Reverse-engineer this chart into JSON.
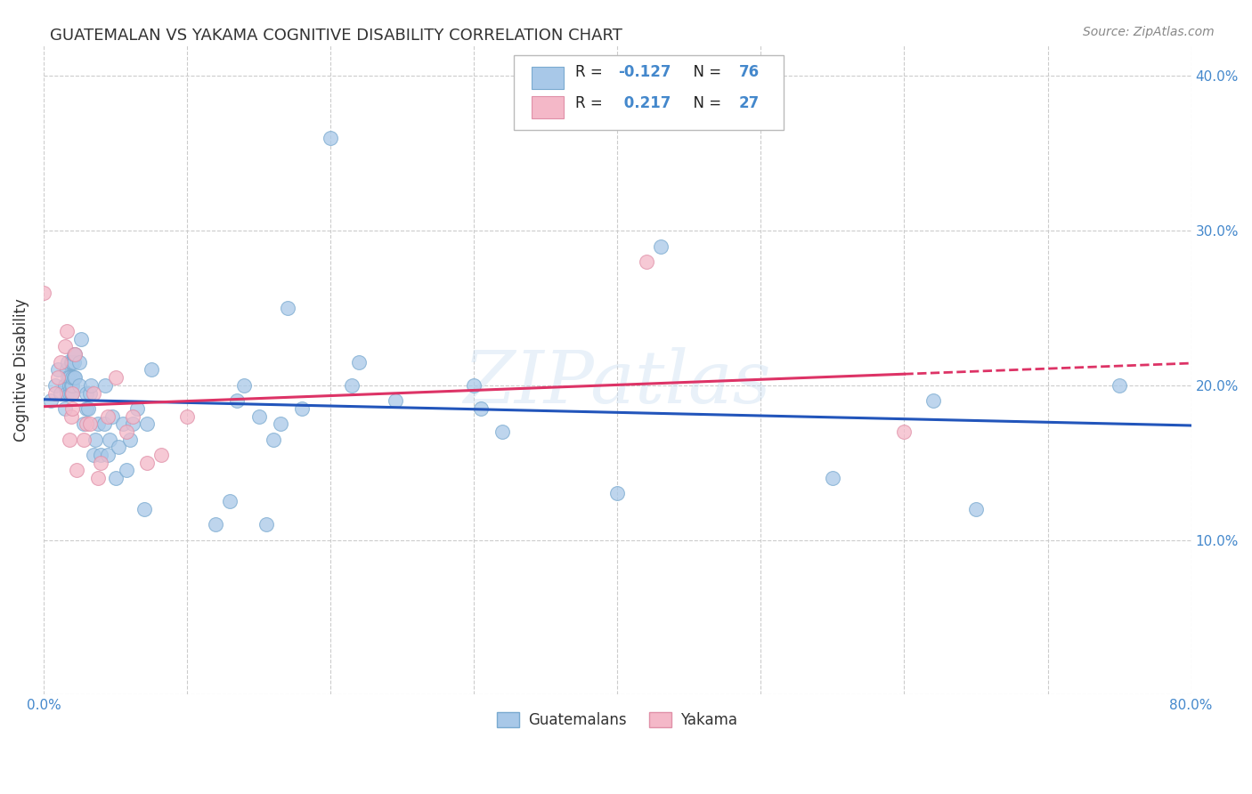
{
  "title": "GUATEMALAN VS YAKAMA COGNITIVE DISABILITY CORRELATION CHART",
  "source": "Source: ZipAtlas.com",
  "ylabel": "Cognitive Disability",
  "xlim": [
    0.0,
    0.8
  ],
  "ylim": [
    0.0,
    0.42
  ],
  "xticks": [
    0.0,
    0.1,
    0.2,
    0.3,
    0.4,
    0.5,
    0.6,
    0.7,
    0.8
  ],
  "xticklabels": [
    "0.0%",
    "",
    "",
    "",
    "",
    "",
    "",
    "",
    "80.0%"
  ],
  "yticks": [
    0.0,
    0.1,
    0.2,
    0.3,
    0.4
  ],
  "yticklabels": [
    "",
    "10.0%",
    "20.0%",
    "30.0%",
    "40.0%"
  ],
  "blue_R": -0.127,
  "blue_N": 76,
  "pink_R": 0.217,
  "pink_N": 27,
  "blue_color": "#a8c8e8",
  "pink_color": "#f4b8c8",
  "blue_edge_color": "#7aaad0",
  "pink_edge_color": "#e090a8",
  "blue_line_color": "#2255bb",
  "pink_line_color": "#dd3366",
  "background_color": "#ffffff",
  "grid_color": "#cccccc",
  "title_color": "#333333",
  "axis_label_color": "#333333",
  "tick_color": "#4488cc",
  "watermark": "ZIPatlas",
  "legend_blue_label": "Guatemalans",
  "legend_pink_label": "Yakama",
  "blue_x": [
    0.005,
    0.008,
    0.01,
    0.012,
    0.015,
    0.015,
    0.016,
    0.016,
    0.017,
    0.017,
    0.018,
    0.018,
    0.018,
    0.019,
    0.019,
    0.019,
    0.02,
    0.02,
    0.02,
    0.02,
    0.021,
    0.021,
    0.021,
    0.022,
    0.022,
    0.025,
    0.025,
    0.026,
    0.028,
    0.03,
    0.03,
    0.031,
    0.032,
    0.033,
    0.035,
    0.036,
    0.038,
    0.04,
    0.042,
    0.043,
    0.045,
    0.046,
    0.048,
    0.05,
    0.052,
    0.055,
    0.058,
    0.06,
    0.062,
    0.065,
    0.07,
    0.072,
    0.075,
    0.12,
    0.13,
    0.135,
    0.14,
    0.15,
    0.155,
    0.16,
    0.165,
    0.17,
    0.18,
    0.2,
    0.215,
    0.22,
    0.245,
    0.3,
    0.305,
    0.32,
    0.4,
    0.43,
    0.55,
    0.62,
    0.65,
    0.75
  ],
  "blue_y": [
    0.19,
    0.2,
    0.21,
    0.195,
    0.185,
    0.2,
    0.195,
    0.21,
    0.205,
    0.215,
    0.195,
    0.2,
    0.205,
    0.195,
    0.2,
    0.215,
    0.195,
    0.2,
    0.205,
    0.215,
    0.205,
    0.215,
    0.22,
    0.205,
    0.22,
    0.2,
    0.215,
    0.23,
    0.175,
    0.185,
    0.195,
    0.185,
    0.195,
    0.2,
    0.155,
    0.165,
    0.175,
    0.155,
    0.175,
    0.2,
    0.155,
    0.165,
    0.18,
    0.14,
    0.16,
    0.175,
    0.145,
    0.165,
    0.175,
    0.185,
    0.12,
    0.175,
    0.21,
    0.11,
    0.125,
    0.19,
    0.2,
    0.18,
    0.11,
    0.165,
    0.175,
    0.25,
    0.185,
    0.36,
    0.2,
    0.215,
    0.19,
    0.2,
    0.185,
    0.17,
    0.13,
    0.29,
    0.14,
    0.19,
    0.12,
    0.2
  ],
  "pink_x": [
    0.0,
    0.008,
    0.01,
    0.012,
    0.015,
    0.016,
    0.018,
    0.019,
    0.02,
    0.02,
    0.022,
    0.023,
    0.028,
    0.03,
    0.032,
    0.035,
    0.038,
    0.04,
    0.045,
    0.05,
    0.058,
    0.062,
    0.072,
    0.082,
    0.1,
    0.42,
    0.6
  ],
  "pink_y": [
    0.26,
    0.195,
    0.205,
    0.215,
    0.225,
    0.235,
    0.165,
    0.18,
    0.185,
    0.195,
    0.22,
    0.145,
    0.165,
    0.175,
    0.175,
    0.195,
    0.14,
    0.15,
    0.18,
    0.205,
    0.17,
    0.18,
    0.15,
    0.155,
    0.18,
    0.28,
    0.17
  ]
}
